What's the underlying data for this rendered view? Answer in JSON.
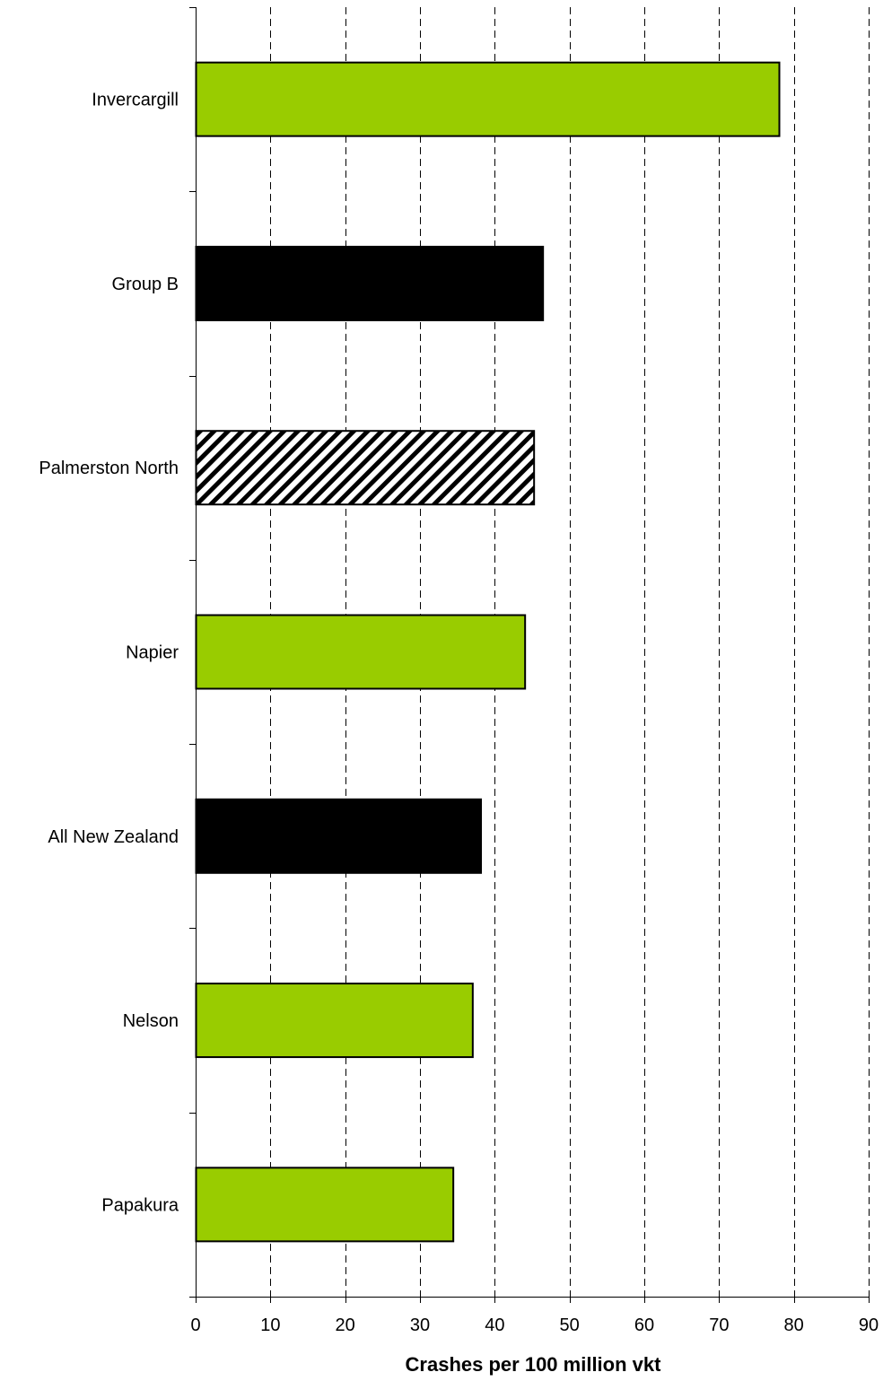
{
  "chart_data": {
    "type": "bar",
    "orientation": "horizontal",
    "title": "",
    "xlabel": "Crashes per 100 million vkt",
    "ylabel": "",
    "xlim": [
      0,
      90
    ],
    "x_ticks": [
      "0",
      "10",
      "20",
      "30",
      "40",
      "50",
      "60",
      "70",
      "80",
      "90"
    ],
    "grid": "vertical dashed",
    "legend": "none",
    "categories": [
      "Invercargill",
      "Group B",
      "Palmerston North",
      "Napier",
      "All New Zealand",
      "Nelson",
      "Papakura"
    ],
    "values": [
      78,
      46.4,
      45.2,
      44,
      38.1,
      37,
      34.4
    ],
    "fills": [
      "green",
      "black",
      "hatched",
      "green",
      "black",
      "green",
      "green"
    ],
    "colors": {
      "green": "#99cc00",
      "black": "#000000",
      "hatched": "#000000"
    }
  }
}
